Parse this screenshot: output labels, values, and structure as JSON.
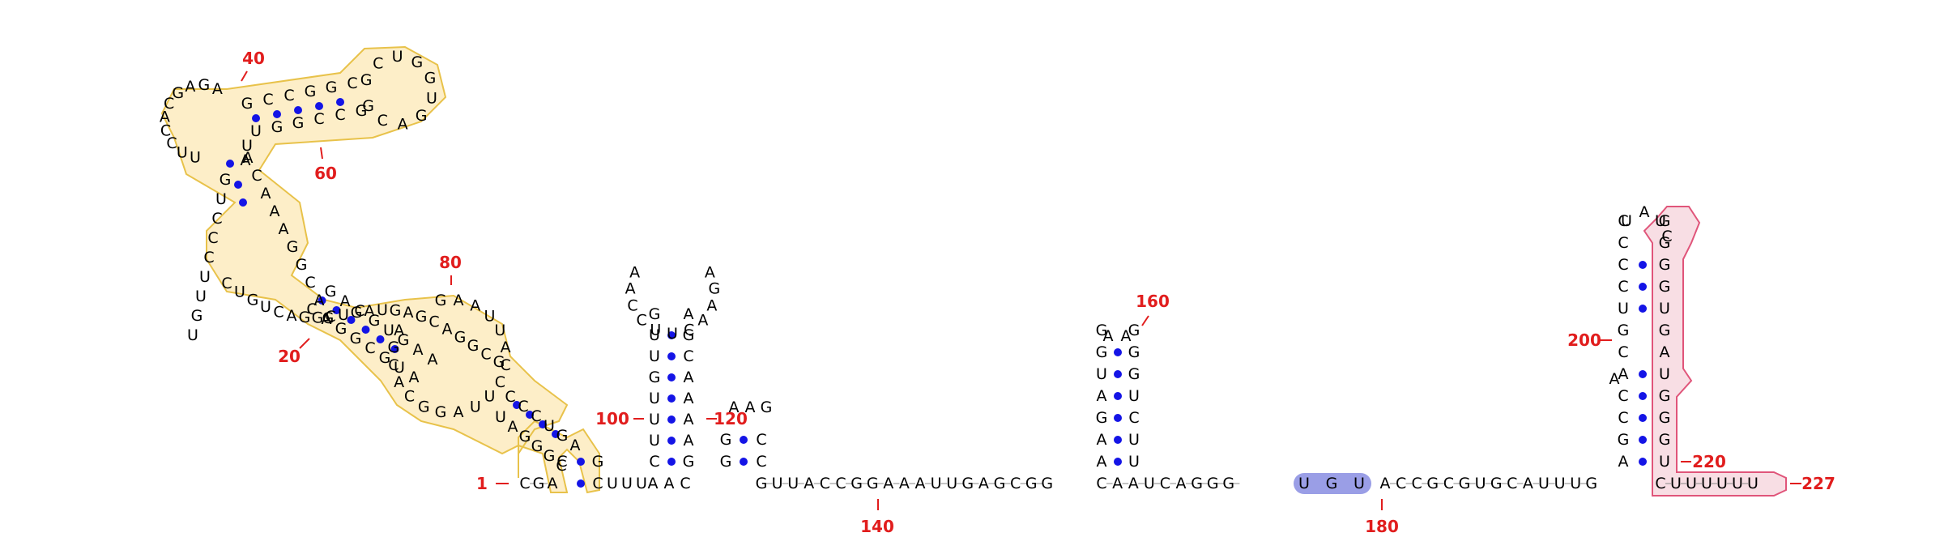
{
  "colors": {
    "base_pair_dot": "#1414e6",
    "number_label": "#e11d1d",
    "yellow_fill": "#fbe3a4",
    "yellow_edge": "#e8c24a",
    "pink_fill": "#f6d6dd",
    "pink_edge": "#e0557a",
    "blue_fill": "#9a9ee6",
    "backbone": "#888888"
  },
  "sequence_segments": {
    "stem1_5p": [
      "C",
      "G",
      "A"
    ],
    "hairpin_left": [
      "C",
      "U",
      "U",
      "U"
    ],
    "loop_left": [
      "A",
      "A",
      "C"
    ],
    "linker": [
      "G",
      "U",
      "U",
      "A",
      "C",
      "C",
      "G",
      "G",
      "A",
      "A",
      "A",
      "U",
      "U",
      "G",
      "A",
      "G",
      "C",
      "G",
      "G"
    ],
    "after_stem5": [
      "C",
      "A",
      "A",
      "U",
      "C",
      "A",
      "G",
      "G",
      "G"
    ],
    "motif_ugu": [
      "U",
      "G",
      "U"
    ],
    "before_terminator": [
      "A",
      "C",
      "C",
      "G",
      "C",
      "G",
      "U",
      "G",
      "C",
      "A",
      "U",
      "U",
      "U",
      "G"
    ],
    "tail": [
      "C",
      "U",
      "U",
      "U",
      "U",
      "U",
      "U"
    ]
  },
  "labels": {
    "n1": "1",
    "n20": "20",
    "n40": "40",
    "n60": "60",
    "n80": "80",
    "n100": "100",
    "n120": "120",
    "n140": "140",
    "n160": "160",
    "n180": "180",
    "n200": "200",
    "n220": "220",
    "n227": "227"
  },
  "helix_left_5p": [
    "C",
    "U",
    "U",
    "U",
    "G",
    "U",
    "U",
    "G",
    "A"
  ],
  "helix_left_3p": [
    "G",
    "C",
    "A",
    "A",
    "U",
    "G",
    "C",
    "A",
    "A"
  ],
  "hairpin2_5p": [
    "G",
    "G"
  ],
  "hairpin2_3p": [
    "C",
    "C"
  ],
  "hairpin2_loop": [
    "A",
    "A",
    "G"
  ],
  "hairpin5_5p": [
    "A",
    "A",
    "G",
    "A",
    "U",
    "G",
    "G"
  ],
  "hairpin5_3p": [
    "U",
    "U",
    "C",
    "U",
    "G",
    "G",
    "G"
  ],
  "hairpin5_loop": [
    "A",
    "A"
  ],
  "terminator_5p": [
    "A",
    "G",
    "C",
    "C",
    "A",
    "C",
    "G",
    "U",
    "C",
    "C",
    "C",
    "C"
  ],
  "terminator_3p": [
    "U",
    "G",
    "G",
    "G",
    "U",
    "A",
    "G",
    "U",
    "G",
    "G",
    "G",
    "G"
  ],
  "terminator_loop": [
    "U",
    "A",
    "U",
    "C"
  ]
}
